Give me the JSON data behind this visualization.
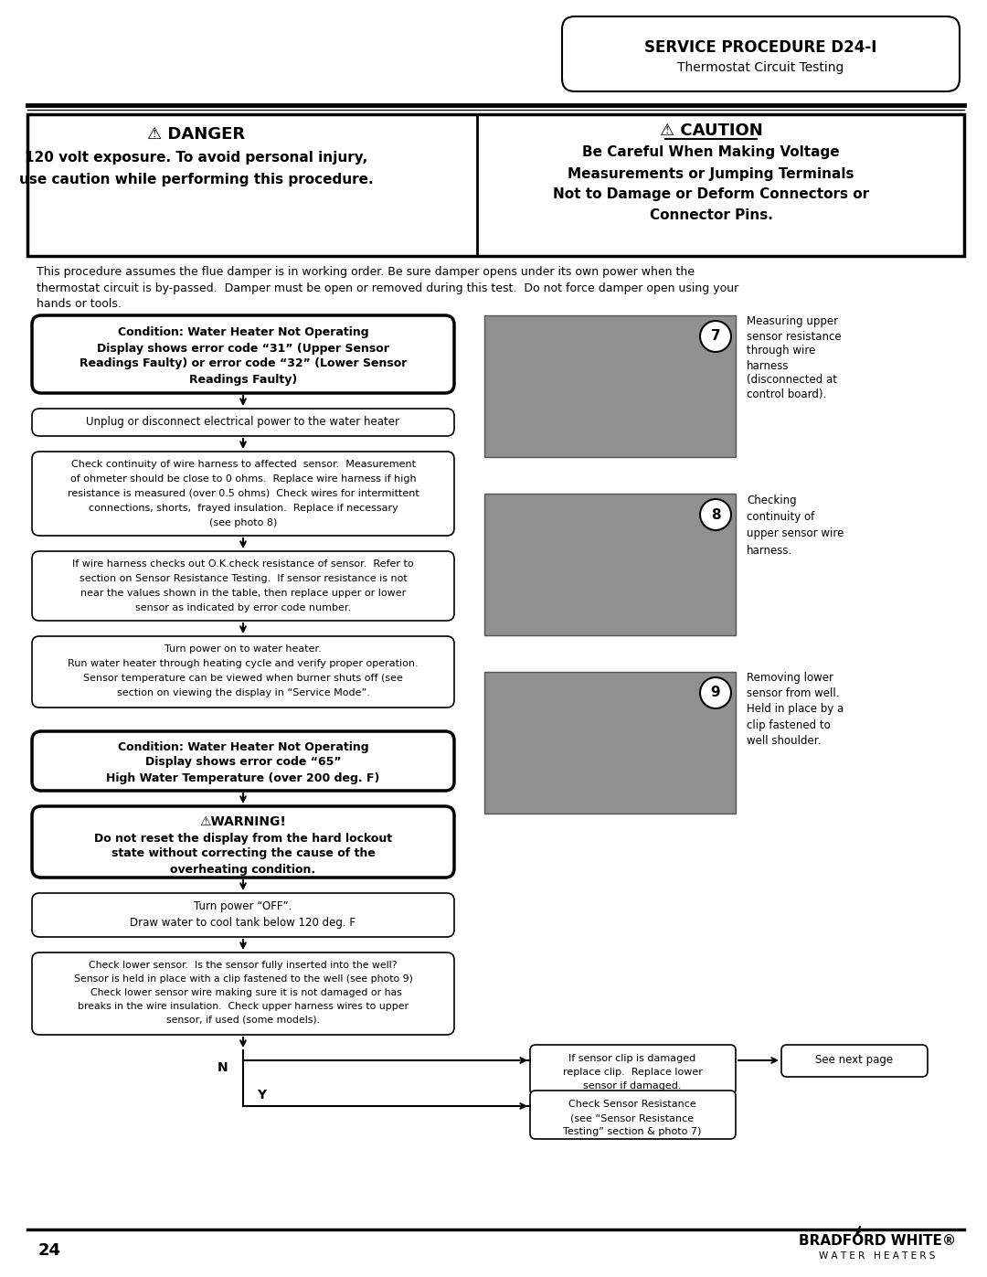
{
  "page_title_line1": "SERVICE PROCEDURE D24-I",
  "page_title_line2": "Thermostat Circuit Testing",
  "page_number": "24",
  "danger_title": "⚠ DANGER",
  "caution_title": "⚠ CAUTION",
  "intro_text": "This procedure assumes the flue damper is in working order. Be sure damper opens under its own power when the\nthermostat circuit is by-passed.  Damper must be open or removed during this test.  Do not force damper open using your\nhands or tools.",
  "condition1_line1": "Condition: Water Heater Not Operating",
  "condition1_line2": "Display shows error code “31” (Upper Sensor",
  "condition1_line3": "Readings Faulty) or error code “32” (Lower Sensor",
  "condition1_line4": "Readings Faulty)",
  "step1_text": "Unplug or disconnect electrical power to the water heater",
  "step2_lines": [
    "Check continuity of wire harness to affected  sensor.  Measurement",
    "of ohmeter should be close to 0 ohms.  Replace wire harness if high",
    "resistance is measured (over 0.5 ohms)  Check wires for intermittent",
    "connections, shorts,  frayed insulation.  Replace if necessary",
    "(see photo 8)"
  ],
  "step3_lines": [
    "If wire harness checks out O.K.check resistance of sensor.  Refer to",
    "section on Sensor Resistance Testing.  If sensor resistance is not",
    "near the values shown in the table, then replace upper or lower",
    "sensor as indicated by error code number."
  ],
  "step4_lines": [
    "Turn power on to water heater.",
    "Run water heater through heating cycle and verify proper operation.",
    "Sensor temperature can be viewed when burner shuts off (see",
    "section on viewing the display in “Service Mode”."
  ],
  "condition2_line1": "Condition: Water Heater Not Operating",
  "condition2_line2": "Display shows error code “65”",
  "condition2_line3": "High Water Temperature (over 200 deg. F)",
  "warning_title": "⚠WARNING!",
  "warning_line1": "Do not reset the display from the hard lockout",
  "warning_line2": "state without correcting the cause of the",
  "warning_line3": "overheating condition.",
  "step5_line1": "Turn power “OFF”.",
  "step5_line2": "Draw water to cool tank below 120 deg. F",
  "step6_lines": [
    "Check lower sensor.  Is the sensor fully inserted into the well?",
    "Sensor is held in place with a clip fastened to the well (see photo 9)",
    "  Check lower sensor wire making sure it is not damaged or has",
    "breaks in the wire insulation.  Check upper harness wires to upper",
    "sensor, if used (some models)."
  ],
  "branch_n": "N",
  "branch_y": "Y",
  "branch_n_line1": "If sensor clip is damaged",
  "branch_n_line2": "replace clip.  Replace lower",
  "branch_n_line3": "sensor if damaged.",
  "branch_y_line1": "Check Sensor Resistance",
  "branch_y_line2": "(see “Sensor Resistance",
  "branch_y_line3": "Testing” section & photo 7)",
  "branch_end": "See next page",
  "photo7_lines": [
    "Measuring upper",
    "sensor resistance",
    "through wire",
    "harness",
    "(disconnected at",
    "control board)."
  ],
  "photo7_number": "7",
  "photo8_lines": [
    "Checking",
    "continuity of",
    "upper sensor wire",
    "harness."
  ],
  "photo8_number": "8",
  "photo9_lines": [
    "Removing lower",
    "sensor from well.",
    "Held in place by a",
    "clip fastened to",
    "well shoulder."
  ],
  "photo9_number": "9",
  "background_color": "#ffffff",
  "brand_name": "BRADFORD WHITE®",
  "brand_subtitle": "W A T E R   H E A T E R S"
}
